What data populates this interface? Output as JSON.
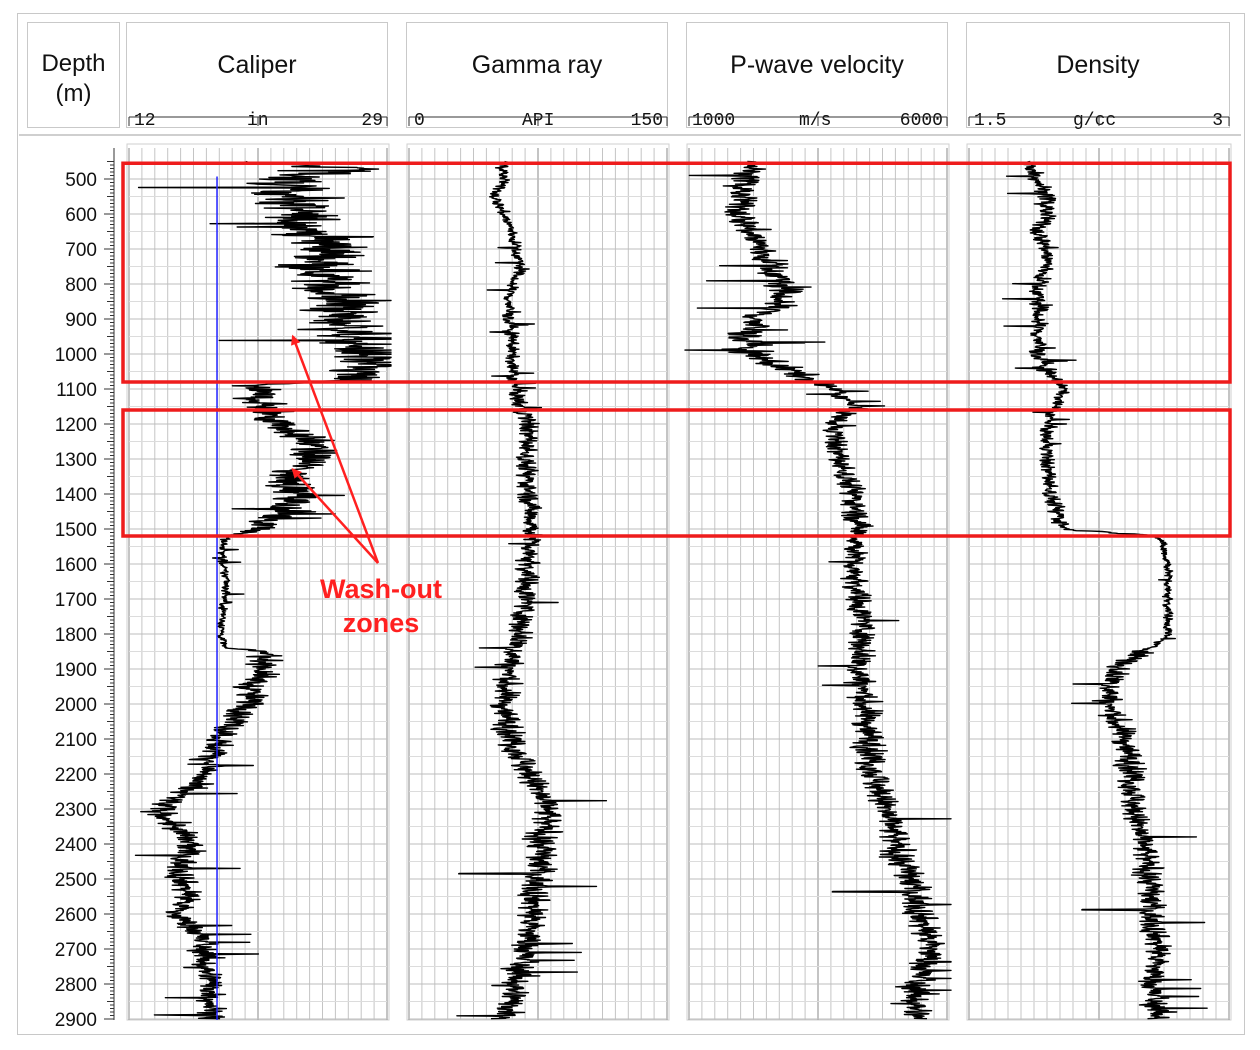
{
  "chart_data": {
    "type": "well-log",
    "depth_axis": {
      "title_line1": "Depth",
      "title_line2": "(m)",
      "range": [
        440,
        2900
      ],
      "tick_step": 100,
      "labels": [
        "500",
        "600",
        "700",
        "800",
        "900",
        "1000",
        "1100",
        "1200",
        "1300",
        "1400",
        "1500",
        "1600",
        "1700",
        "1800",
        "1900",
        "2000",
        "2100",
        "2200",
        "2300",
        "2400",
        "2500",
        "2600",
        "2700",
        "2800",
        "2900"
      ]
    },
    "tracks": [
      {
        "name": "Caliper",
        "unit": "in",
        "min": 12,
        "max": 29,
        "scale_min_label": "12",
        "scale_max_label": "29",
        "reference_line": 17.8,
        "reference_color": "#2020ff",
        "profile": [
          [
            450,
            18
          ],
          [
            470,
            27.5
          ],
          [
            500,
            22
          ],
          [
            550,
            23
          ],
          [
            600,
            23
          ],
          [
            650,
            24
          ],
          [
            700,
            25.5
          ],
          [
            750,
            25
          ],
          [
            800,
            25
          ],
          [
            850,
            26
          ],
          [
            900,
            26
          ],
          [
            950,
            27
          ],
          [
            1000,
            27.5
          ],
          [
            1050,
            27
          ],
          [
            1075,
            26
          ],
          [
            1090,
            20
          ],
          [
            1150,
            21
          ],
          [
            1200,
            22
          ],
          [
            1250,
            24
          ],
          [
            1300,
            24
          ],
          [
            1350,
            22.5
          ],
          [
            1400,
            23
          ],
          [
            1450,
            22
          ],
          [
            1500,
            21
          ],
          [
            1520,
            18.5
          ],
          [
            1540,
            18.2
          ],
          [
            1600,
            18.1
          ],
          [
            1650,
            18.5
          ],
          [
            1700,
            18.3
          ],
          [
            1800,
            18.1
          ],
          [
            1840,
            18.3
          ],
          [
            1850,
            21
          ],
          [
            1900,
            21
          ],
          [
            1950,
            20
          ],
          [
            2000,
            20
          ],
          [
            2050,
            19
          ],
          [
            2100,
            18
          ],
          [
            2150,
            17.5
          ],
          [
            2200,
            17
          ],
          [
            2250,
            15.5
          ],
          [
            2300,
            14
          ],
          [
            2350,
            15
          ],
          [
            2400,
            16
          ],
          [
            2450,
            15.5
          ],
          [
            2500,
            15.5
          ],
          [
            2550,
            16
          ],
          [
            2600,
            15
          ],
          [
            2650,
            16.5
          ],
          [
            2700,
            17
          ],
          [
            2750,
            17
          ],
          [
            2800,
            17.5
          ],
          [
            2850,
            17.5
          ],
          [
            2900,
            17.5
          ]
        ],
        "noise": [
          [
            450,
            4
          ],
          [
            1080,
            4
          ],
          [
            1090,
            2.5
          ],
          [
            1500,
            2.5
          ],
          [
            1520,
            0.5
          ],
          [
            1840,
            0.4
          ],
          [
            1850,
            1.6
          ],
          [
            2200,
            1.5
          ],
          [
            2300,
            1.6
          ],
          [
            2900,
            1.4
          ]
        ]
      },
      {
        "name": "Gamma ray",
        "unit": "API",
        "min": 0,
        "max": 150,
        "scale_min_label": "0",
        "scale_max_label": "150",
        "profile": [
          [
            450,
            55
          ],
          [
            500,
            55
          ],
          [
            550,
            50
          ],
          [
            600,
            55
          ],
          [
            650,
            60
          ],
          [
            700,
            62
          ],
          [
            750,
            65
          ],
          [
            800,
            60
          ],
          [
            850,
            58
          ],
          [
            900,
            58
          ],
          [
            950,
            60
          ],
          [
            1000,
            60
          ],
          [
            1050,
            60
          ],
          [
            1100,
            62
          ],
          [
            1150,
            65
          ],
          [
            1200,
            70
          ],
          [
            1300,
            68
          ],
          [
            1400,
            70
          ],
          [
            1500,
            72
          ],
          [
            1600,
            70
          ],
          [
            1700,
            68
          ],
          [
            1800,
            65
          ],
          [
            1900,
            58
          ],
          [
            2000,
            55
          ],
          [
            2100,
            60
          ],
          [
            2200,
            70
          ],
          [
            2300,
            80
          ],
          [
            2400,
            78
          ],
          [
            2500,
            75
          ],
          [
            2600,
            72
          ],
          [
            2700,
            68
          ],
          [
            2800,
            62
          ],
          [
            2900,
            58
          ]
        ],
        "noise": [
          [
            450,
            5
          ],
          [
            1100,
            6
          ],
          [
            1150,
            9
          ],
          [
            1500,
            9
          ],
          [
            1600,
            10
          ],
          [
            2000,
            12
          ],
          [
            2300,
            14
          ],
          [
            2900,
            14
          ]
        ]
      },
      {
        "name": "P-wave velocity",
        "unit": "m/s",
        "min": 1000,
        "max": 6000,
        "scale_min_label": "1000",
        "scale_max_label": "6000",
        "profile": [
          [
            450,
            2300
          ],
          [
            500,
            2100
          ],
          [
            550,
            2000
          ],
          [
            600,
            2000
          ],
          [
            650,
            2200
          ],
          [
            700,
            2400
          ],
          [
            750,
            2600
          ],
          [
            800,
            2800
          ],
          [
            850,
            2800
          ],
          [
            900,
            2300
          ],
          [
            950,
            2100
          ],
          [
            1000,
            2200
          ],
          [
            1050,
            3000
          ],
          [
            1100,
            3800
          ],
          [
            1150,
            4200
          ],
          [
            1200,
            3800
          ],
          [
            1300,
            3900
          ],
          [
            1400,
            4200
          ],
          [
            1500,
            4300
          ],
          [
            1600,
            4200
          ],
          [
            1700,
            4300
          ],
          [
            1800,
            4400
          ],
          [
            1900,
            4300
          ],
          [
            2000,
            4400
          ],
          [
            2100,
            4500
          ],
          [
            2200,
            4600
          ],
          [
            2300,
            4800
          ],
          [
            2400,
            5000
          ],
          [
            2500,
            5300
          ],
          [
            2600,
            5500
          ],
          [
            2700,
            5700
          ],
          [
            2800,
            5400
          ],
          [
            2900,
            5400
          ]
        ],
        "noise": [
          [
            450,
            400
          ],
          [
            900,
            600
          ],
          [
            1050,
            600
          ],
          [
            1100,
            300
          ],
          [
            1500,
            400
          ],
          [
            1600,
            350
          ],
          [
            2000,
            450
          ],
          [
            2900,
            500
          ]
        ]
      },
      {
        "name": "Density",
        "unit": "g/cc",
        "min": 1.5,
        "max": 3,
        "scale_min_label": "1.5",
        "scale_max_label": "3",
        "profile": [
          [
            450,
            1.85
          ],
          [
            500,
            1.9
          ],
          [
            550,
            1.95
          ],
          [
            600,
            1.95
          ],
          [
            650,
            1.9
          ],
          [
            700,
            1.95
          ],
          [
            750,
            1.95
          ],
          [
            800,
            1.9
          ],
          [
            850,
            1.9
          ],
          [
            900,
            1.9
          ],
          [
            1000,
            1.9
          ],
          [
            1050,
            1.95
          ],
          [
            1100,
            2.05
          ],
          [
            1150,
            2.0
          ],
          [
            1200,
            1.95
          ],
          [
            1300,
            1.95
          ],
          [
            1400,
            1.97
          ],
          [
            1500,
            2.05
          ],
          [
            1520,
            2.6
          ],
          [
            1600,
            2.65
          ],
          [
            1700,
            2.65
          ],
          [
            1800,
            2.65
          ],
          [
            1840,
            2.55
          ],
          [
            1900,
            2.35
          ],
          [
            2000,
            2.3
          ],
          [
            2100,
            2.4
          ],
          [
            2200,
            2.45
          ],
          [
            2300,
            2.45
          ],
          [
            2400,
            2.5
          ],
          [
            2500,
            2.55
          ],
          [
            2600,
            2.55
          ],
          [
            2700,
            2.6
          ],
          [
            2800,
            2.55
          ],
          [
            2900,
            2.6
          ]
        ],
        "noise": [
          [
            450,
            0.08
          ],
          [
            1050,
            0.08
          ],
          [
            1100,
            0.05
          ],
          [
            1500,
            0.08
          ],
          [
            1520,
            0.04
          ],
          [
            1840,
            0.04
          ],
          [
            1850,
            0.12
          ],
          [
            2900,
            0.12
          ]
        ]
      }
    ],
    "highlight_boxes": [
      {
        "depth_top": 455,
        "depth_bottom": 1080,
        "color": "#ee1c1c"
      },
      {
        "depth_top": 1160,
        "depth_bottom": 1520,
        "color": "#ee1c1c"
      }
    ],
    "annotation": {
      "line1": "Wash-out",
      "line2": "zones",
      "color": "#ff2020",
      "arrow_targets": [
        {
          "track": "Caliper",
          "value": 22.8,
          "depth": 950
        },
        {
          "track": "Caliper",
          "value": 22.8,
          "depth": 1330
        }
      ]
    }
  }
}
